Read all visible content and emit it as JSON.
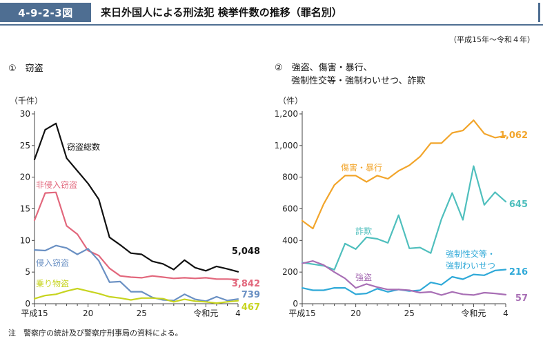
{
  "header": {
    "figure_id": "4-9-2-3図",
    "title": "来日外国人による刑法犯 検挙件数の推移（罪名別）",
    "period": "（平成15年～令和４年）"
  },
  "note": "注　警察庁の統計及び警察庁刑事局の資料による。",
  "colors": {
    "header": "#4e6e92",
    "black": "#111111",
    "pink": "#e2677c",
    "blue": "#6a90c3",
    "yellowgreen": "#c7d420",
    "orange": "#f2a52b",
    "teal": "#4fbfbd",
    "cyan": "#2fa9d8",
    "purple": "#a86fb5"
  },
  "chart_data": [
    {
      "type": "line",
      "panel_title": "①　窃盗",
      "ylabel": "（千件）",
      "ylim": [
        0,
        30
      ],
      "yticks": [
        "0",
        "5",
        "10",
        "15",
        "20",
        "25",
        "30"
      ],
      "x_tick_labels": [
        "平成15",
        "20",
        "25",
        "令和元",
        "4"
      ],
      "x": [
        15,
        16,
        17,
        18,
        19,
        20,
        21,
        22,
        23,
        24,
        25,
        26,
        27,
        28,
        29,
        30,
        31,
        32,
        33,
        34
      ],
      "series": [
        {
          "name": "窃盗総数",
          "color": "black",
          "end_label": "5,048",
          "values": [
            22.8,
            27.5,
            28.5,
            23.0,
            21.0,
            19.0,
            16.5,
            10.5,
            9.3,
            8.0,
            7.8,
            6.7,
            6.3,
            5.4,
            6.9,
            5.7,
            5.2,
            5.9,
            5.5,
            5.05
          ]
        },
        {
          "name": "非侵入窃盗",
          "color": "pink",
          "end_label": "3,842",
          "values": [
            13.2,
            17.5,
            17.6,
            12.3,
            11.0,
            8.4,
            7.6,
            5.6,
            4.4,
            4.2,
            4.1,
            4.4,
            4.2,
            4.0,
            4.1,
            4.0,
            4.1,
            3.9,
            3.9,
            3.84
          ]
        },
        {
          "name": "侵入窃盗",
          "color": "blue",
          "end_label": "739",
          "values": [
            8.5,
            8.4,
            9.2,
            8.8,
            7.8,
            8.7,
            6.8,
            3.4,
            3.5,
            1.9,
            1.9,
            1.0,
            0.6,
            0.5,
            1.5,
            0.7,
            0.4,
            1.1,
            0.5,
            0.74
          ]
        },
        {
          "name": "乗り物盗",
          "color": "yellowgreen",
          "end_label": "467",
          "values": [
            0.8,
            1.3,
            1.5,
            2.0,
            2.4,
            2.0,
            1.6,
            1.1,
            0.9,
            0.6,
            0.9,
            0.9,
            0.8,
            0.3,
            0.7,
            0.4,
            0.3,
            0.1,
            0.3,
            0.47
          ]
        }
      ]
    },
    {
      "type": "line",
      "panel_title": [
        "②　強盗、傷害・暴行、",
        "強制性交等・強制わいせつ、詐欺"
      ],
      "ylabel": "（件）",
      "ylim": [
        0,
        1200
      ],
      "yticks": [
        "0",
        "200",
        "400",
        "600",
        "800",
        "1,000",
        "1,200"
      ],
      "x_tick_labels": [
        "平成15",
        "20",
        "25",
        "令和元",
        "4"
      ],
      "x": [
        15,
        16,
        17,
        18,
        19,
        20,
        21,
        22,
        23,
        24,
        25,
        26,
        27,
        28,
        29,
        30,
        31,
        32,
        33,
        34
      ],
      "series": [
        {
          "name": "傷害・暴行",
          "color": "orange",
          "end_label": "1,062",
          "values": [
            525,
            475,
            630,
            750,
            810,
            810,
            770,
            810,
            790,
            840,
            875,
            930,
            1015,
            1015,
            1080,
            1095,
            1160,
            1075,
            1050,
            1062
          ]
        },
        {
          "name": "詐欺",
          "color": "teal",
          "end_label": "645",
          "values": [
            260,
            250,
            240,
            215,
            380,
            345,
            420,
            410,
            385,
            560,
            350,
            355,
            320,
            535,
            700,
            530,
            870,
            625,
            705,
            645
          ]
        },
        {
          "name": "強制性交等・強制わいせつ",
          "color": "cyan",
          "end_label": "216",
          "values": [
            100,
            85,
            85,
            100,
            100,
            60,
            65,
            95,
            75,
            90,
            80,
            85,
            135,
            120,
            170,
            155,
            185,
            180,
            210,
            216
          ]
        },
        {
          "name": "強盗",
          "color": "purple",
          "end_label": "57",
          "values": [
            255,
            270,
            245,
            200,
            160,
            100,
            125,
            105,
            90,
            90,
            85,
            70,
            75,
            55,
            75,
            60,
            55,
            70,
            65,
            57
          ]
        }
      ]
    }
  ]
}
